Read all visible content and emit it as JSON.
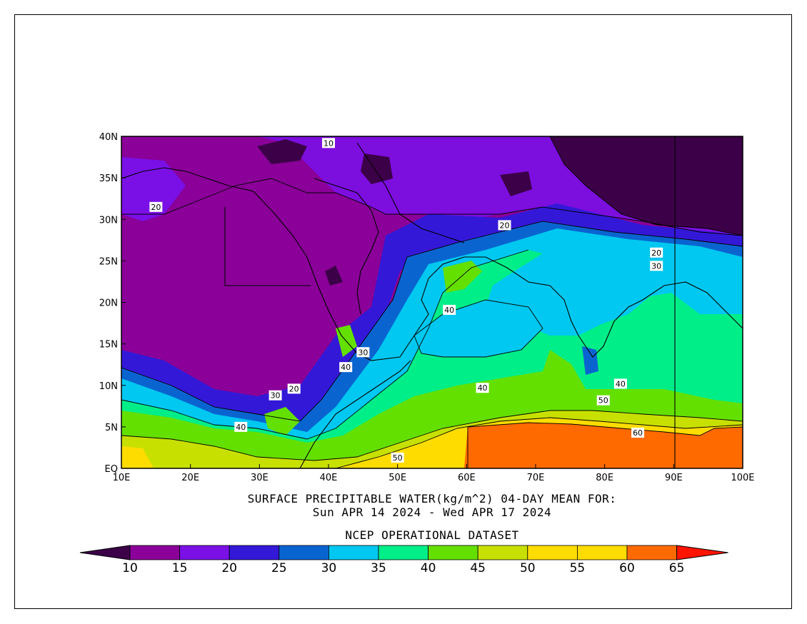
{
  "caption": {
    "line1": "SURFACE PRECIPITABLE WATER(kg/m^2)   04-DAY MEAN FOR:",
    "line2": "Sun APR 14 2024 - Wed APR 17 2024",
    "dataset": "NCEP OPERATIONAL DATASET"
  },
  "axes": {
    "lon_labels": [
      "10E",
      "20E",
      "30E",
      "40E",
      "50E",
      "60E",
      "70E",
      "80E",
      "90E",
      "100E"
    ],
    "lat_labels": [
      "EQ",
      "5N",
      "10N",
      "15N",
      "20N",
      "25N",
      "30N",
      "35N",
      "40N"
    ],
    "lon_range": [
      10,
      100
    ],
    "lat_range": [
      0,
      40
    ]
  },
  "colorbar": {
    "labels": [
      "10",
      "15",
      "20",
      "25",
      "30",
      "35",
      "40",
      "45",
      "50",
      "55",
      "60",
      "65"
    ],
    "colors": [
      "#3c0048",
      "#8a0098",
      "#7a10e6",
      "#3418d8",
      "#0a64d0",
      "#00c8f0",
      "#00ee88",
      "#64e000",
      "#c8e000",
      "#ffdc00",
      "#ffdc00",
      "#ff6a00",
      "#ff1400"
    ]
  },
  "map": {
    "units": "kg/m^2",
    "contour_labels": [
      {
        "text": "10",
        "lon": 40,
        "lat": 39.2
      },
      {
        "text": "20",
        "lon": 15,
        "lat": 31.5
      },
      {
        "text": "20",
        "lon": 65.5,
        "lat": 29.3
      },
      {
        "text": "20",
        "lon": 87.5,
        "lat": 26
      },
      {
        "text": "30",
        "lon": 87.5,
        "lat": 24.4
      },
      {
        "text": "40",
        "lon": 57.5,
        "lat": 19.1
      },
      {
        "text": "30",
        "lon": 45,
        "lat": 14
      },
      {
        "text": "40",
        "lon": 42.5,
        "lat": 12.2
      },
      {
        "text": "20",
        "lon": 35,
        "lat": 9.6
      },
      {
        "text": "30",
        "lon": 32.3,
        "lat": 8.8
      },
      {
        "text": "40",
        "lon": 27.3,
        "lat": 5
      },
      {
        "text": "40",
        "lon": 62.3,
        "lat": 9.7
      },
      {
        "text": "40",
        "lon": 82.3,
        "lat": 10.2
      },
      {
        "text": "50",
        "lon": 79.8,
        "lat": 8.2
      },
      {
        "text": "60",
        "lon": 84.8,
        "lat": 4.3
      },
      {
        "text": "50",
        "lon": 50,
        "lat": 1.3
      }
    ]
  }
}
